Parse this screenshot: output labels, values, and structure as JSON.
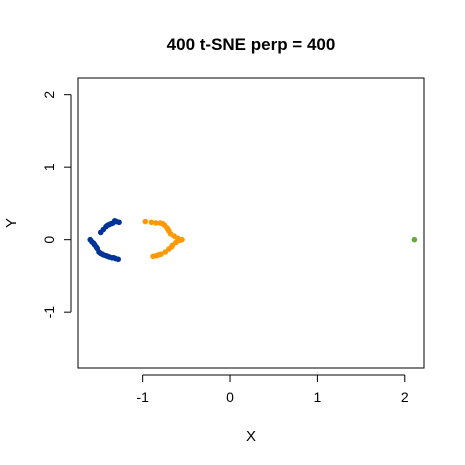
{
  "chart_data": {
    "type": "scatter",
    "title": "400 t-SNE perp = 400",
    "xlabel": "X",
    "ylabel": "Y",
    "xlim": [
      -1.74,
      2.22
    ],
    "ylim": [
      -1.77,
      2.23
    ],
    "xticks": [
      -1,
      0,
      1,
      2
    ],
    "yticks": [
      -1,
      0,
      1,
      2
    ],
    "grid": false,
    "legend": "none",
    "series": [
      {
        "color": "#003399",
        "points": [
          [
            -1.42,
            0.18
          ],
          [
            -1.38,
            0.21
          ],
          [
            -1.34,
            0.23
          ],
          [
            -1.3,
            0.25
          ],
          [
            -1.27,
            0.24
          ],
          [
            -1.45,
            0.14
          ],
          [
            -1.48,
            0.1
          ],
          [
            -1.36,
            0.22
          ],
          [
            -1.32,
            0.26
          ],
          [
            -1.4,
            0.2
          ],
          [
            -1.6,
            0.0
          ],
          [
            -1.58,
            -0.03
          ],
          [
            -1.55,
            -0.07
          ],
          [
            -1.52,
            -0.12
          ],
          [
            -1.5,
            -0.17
          ],
          [
            -1.48,
            -0.19
          ],
          [
            -1.45,
            -0.21
          ],
          [
            -1.42,
            -0.22
          ],
          [
            -1.38,
            -0.24
          ],
          [
            -1.35,
            -0.25
          ],
          [
            -1.31,
            -0.26
          ],
          [
            -1.28,
            -0.27
          ],
          [
            -1.56,
            -0.05
          ],
          [
            -1.53,
            -0.1
          ],
          [
            -1.46,
            -0.2
          ],
          [
            -1.4,
            -0.23
          ],
          [
            -1.33,
            -0.25
          ]
        ]
      },
      {
        "color": "#FF9900",
        "points": [
          [
            -0.97,
            0.25
          ],
          [
            -0.9,
            0.24
          ],
          [
            -0.85,
            0.23
          ],
          [
            -0.8,
            0.23
          ],
          [
            -0.75,
            0.2
          ],
          [
            -0.72,
            0.16
          ],
          [
            -0.7,
            0.12
          ],
          [
            -0.68,
            0.08
          ],
          [
            -0.64,
            0.05
          ],
          [
            -0.6,
            0.02
          ],
          [
            -0.55,
            0.0
          ],
          [
            -0.58,
            -0.01
          ],
          [
            -0.62,
            -0.04
          ],
          [
            -0.66,
            -0.08
          ],
          [
            -0.7,
            -0.13
          ],
          [
            -0.74,
            -0.17
          ],
          [
            -0.79,
            -0.2
          ],
          [
            -0.84,
            -0.22
          ],
          [
            -0.88,
            -0.23
          ],
          [
            -0.82,
            -0.21
          ],
          [
            -0.77,
            0.22
          ],
          [
            -0.71,
            0.14
          ],
          [
            -0.67,
            -0.1
          ]
        ]
      },
      {
        "color": "#66AA33",
        "points": [
          [
            2.11,
            0.0
          ]
        ]
      }
    ]
  }
}
